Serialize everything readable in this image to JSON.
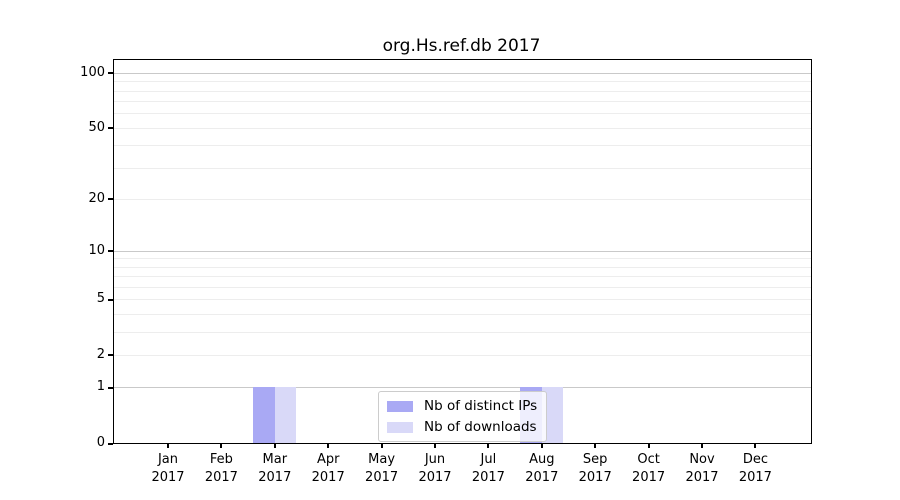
{
  "chart_data": {
    "type": "bar",
    "title": "org.Hs.ref.db 2017",
    "x_months": [
      "Jan",
      "Feb",
      "Mar",
      "Apr",
      "May",
      "Jun",
      "Jul",
      "Aug",
      "Sep",
      "Oct",
      "Nov",
      "Dec"
    ],
    "x_year": "2017",
    "series": [
      {
        "name": "Nb of distinct IPs",
        "color": "#a9a9f4",
        "values": [
          0,
          0,
          1,
          0,
          0,
          0,
          0,
          1,
          0,
          0,
          0,
          0
        ]
      },
      {
        "name": "Nb of downloads",
        "color": "#d9d9f8",
        "values": [
          0,
          0,
          1,
          0,
          0,
          0,
          0,
          1,
          0,
          0,
          0,
          0
        ]
      }
    ],
    "y_scale": "log1p",
    "ylim": [
      0,
      117
    ],
    "y_ticks": [
      0,
      1,
      2,
      5,
      10,
      20,
      50,
      100
    ],
    "grid_minor": [
      2,
      3,
      4,
      5,
      6,
      7,
      8,
      9,
      20,
      30,
      40,
      50,
      60,
      70,
      80,
      90
    ],
    "grid_major": [
      1,
      10,
      100
    ],
    "legend_position": "inside-bottom-center",
    "colors": {
      "axis": "#000000",
      "grid_major": "#c9c9c9",
      "grid_minor": "#ededed"
    }
  }
}
